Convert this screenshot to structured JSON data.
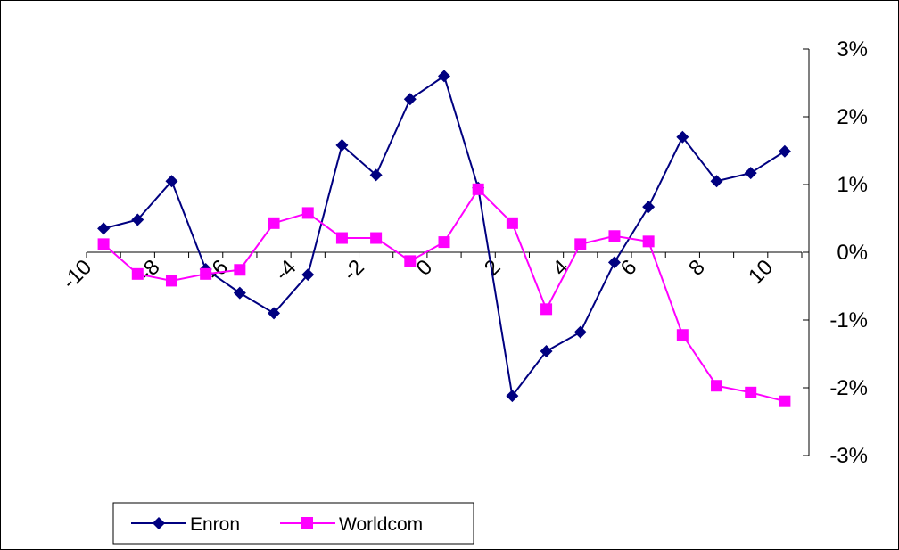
{
  "chart_data": {
    "type": "line",
    "title": "",
    "xlabel": "",
    "ylabel": "",
    "x_ticks": [
      -10,
      -8,
      -6,
      -4,
      -2,
      0,
      2,
      4,
      6,
      8,
      10
    ],
    "y_ticks": [
      3,
      2,
      1,
      0,
      -1,
      -2,
      -3
    ],
    "y_tick_labels": [
      "3%",
      "2%",
      "1%",
      "0%",
      "-1%",
      "-2%",
      "-3%"
    ],
    "xlim": [
      -10,
      10
    ],
    "ylim": [
      -3,
      3
    ],
    "y_axis_position": "right",
    "grid": false,
    "legend_position": "bottom-left",
    "x": [
      -10,
      -9,
      -8,
      -7,
      -6,
      -5,
      -4,
      -3,
      -2,
      -1,
      0,
      1,
      2,
      3,
      4,
      5,
      6,
      7,
      8,
      9,
      10
    ],
    "series": [
      {
        "name": "Enron",
        "color": "#000080",
        "marker": "diamond",
        "values": [
          0.35,
          0.48,
          1.05,
          -0.25,
          -0.6,
          -0.9,
          -0.33,
          1.58,
          1.14,
          2.26,
          2.6,
          0.95,
          -2.12,
          -1.46,
          -1.18,
          -0.15,
          0.67,
          1.7,
          1.05,
          1.17,
          1.49
        ]
      },
      {
        "name": "Worldcom",
        "color": "#ff00ff",
        "marker": "square",
        "values": [
          0.12,
          -0.32,
          -0.42,
          -0.32,
          -0.26,
          0.43,
          0.58,
          0.21,
          0.21,
          -0.13,
          0.15,
          0.93,
          0.43,
          -0.84,
          0.12,
          0.24,
          0.16,
          -1.22,
          -1.97,
          -2.07,
          -2.2
        ]
      }
    ]
  }
}
